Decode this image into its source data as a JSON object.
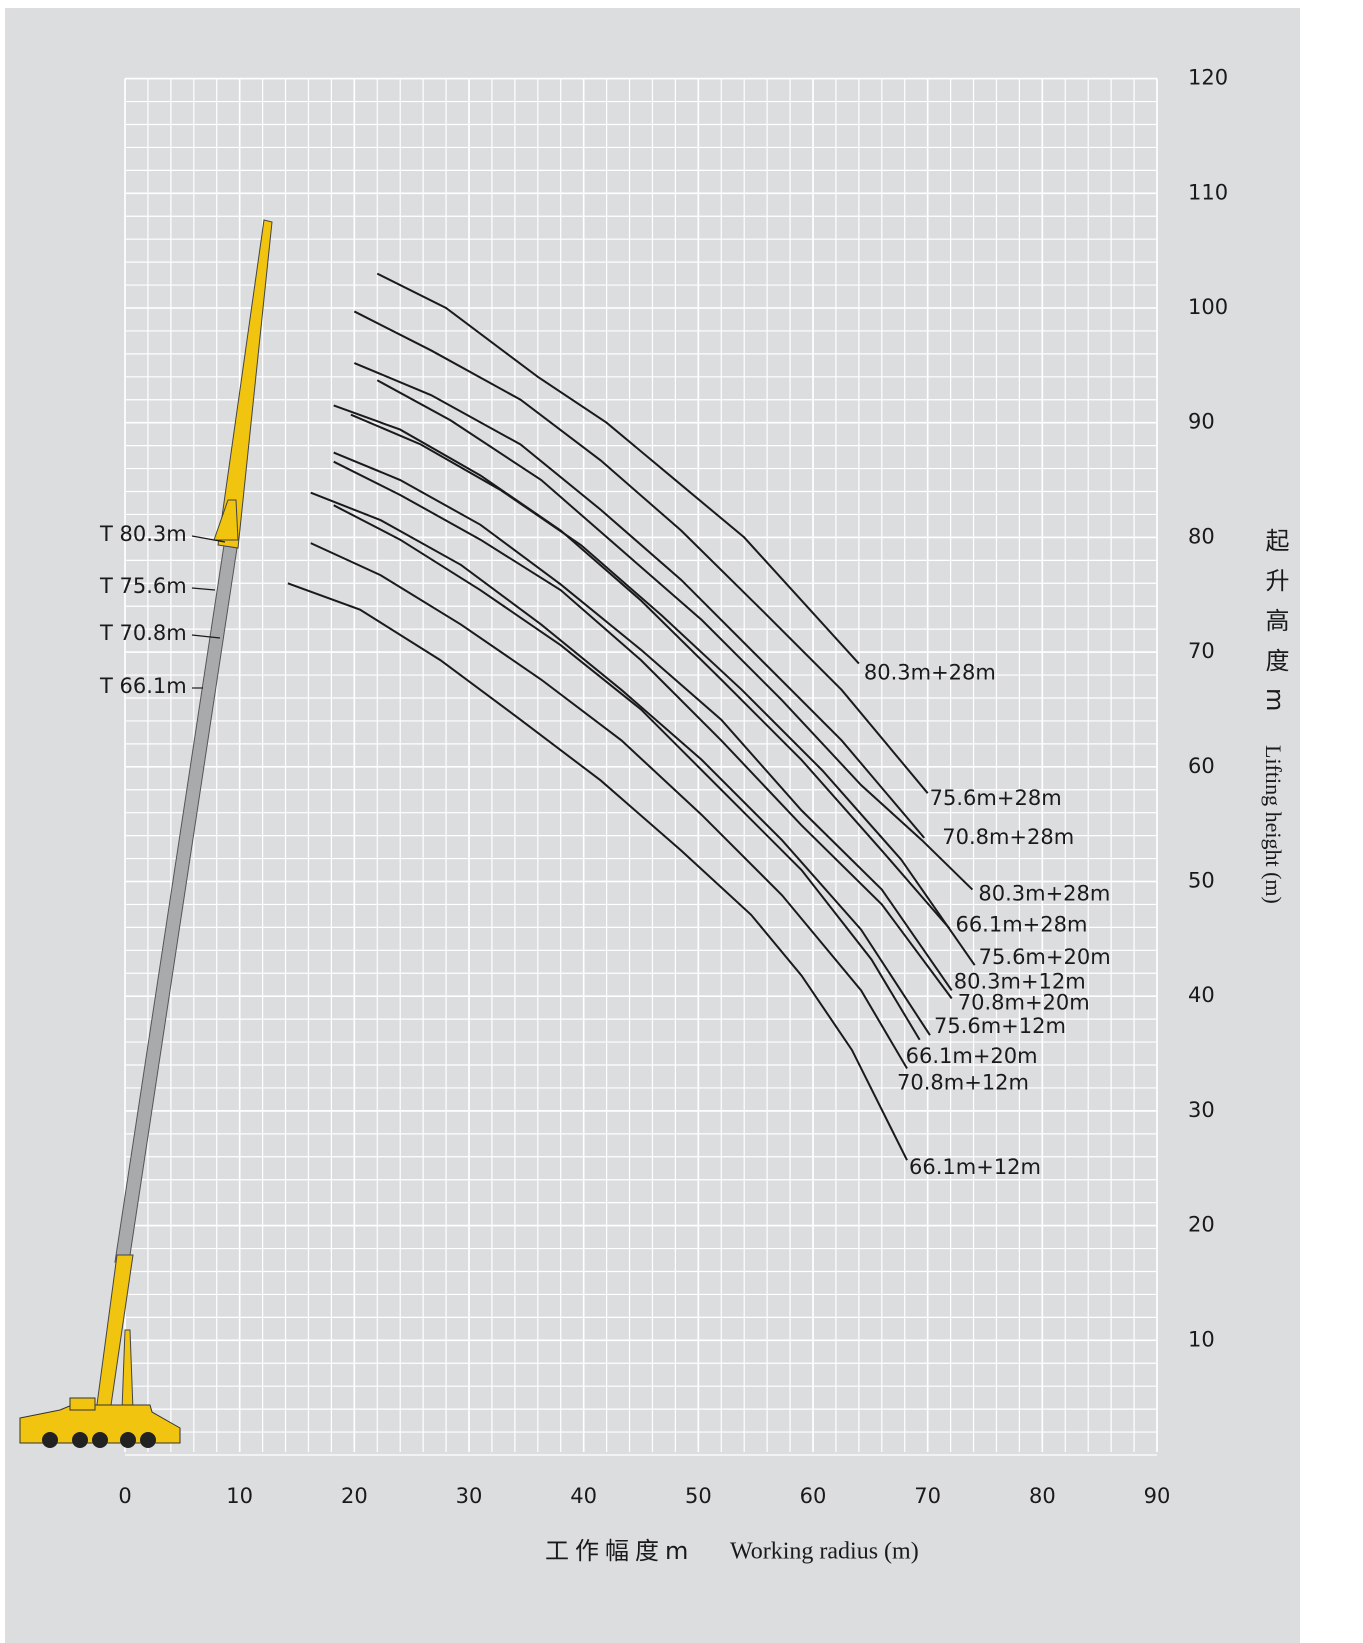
{
  "chart_data": {
    "type": "line",
    "xlim": [
      0,
      90
    ],
    "ylim": [
      0,
      120
    ],
    "xticks": [
      0,
      10,
      20,
      30,
      40,
      50,
      60,
      70,
      80,
      90
    ],
    "yticks": [
      10,
      20,
      30,
      40,
      50,
      60,
      70,
      80,
      90,
      100,
      110,
      120
    ],
    "grid": true,
    "x_label_cn": "工作幅度m",
    "x_label": "Working radius (m)",
    "y_label_cn": "起升高度m",
    "y_label": "Lifting height (m)",
    "annotations": [
      "T 80.3m",
      "T 75.6m",
      "T 70.8m",
      "T 66.1m"
    ],
    "series": [
      {
        "name": "80.3m+28m",
        "color": "#1a1a1a",
        "x": [
          22,
          28,
          36,
          42,
          48,
          54,
          59,
          64
        ],
        "values": [
          103,
          100,
          94,
          90,
          85,
          80,
          74.5,
          69
        ]
      },
      {
        "name": "75.6m+28m",
        "color": "#1a1a1a",
        "x": [
          20,
          26.7,
          34.5,
          41.5,
          48.5,
          55.5,
          62.5,
          70
        ],
        "values": [
          99.7,
          96.3,
          92,
          86.7,
          80.6,
          73.7,
          66.7,
          57.7
        ]
      },
      {
        "name": "70.8m+28m",
        "color": "#1a1a1a",
        "x": [
          20,
          26.7,
          34.5,
          41.5,
          48.5,
          55.5,
          62.5,
          69.7
        ],
        "values": [
          95.2,
          92.4,
          88.1,
          82.4,
          76.3,
          69.3,
          62.3,
          53.8
        ]
      },
      {
        "name": "80.3m+28m",
        "color": "#1a1a1a",
        "x": [
          22,
          28.4,
          36.3,
          43.3,
          50.3,
          57.3,
          64.2,
          69.5,
          73.9
        ],
        "values": [
          93.7,
          90.2,
          85,
          78.9,
          72.8,
          65.8,
          58.4,
          53.6,
          49.3
        ]
      },
      {
        "name": "66.1m+28m",
        "color": "#1a1a1a",
        "x": [
          18.2,
          24,
          31,
          38,
          45,
          52,
          59,
          66,
          71.9
        ],
        "values": [
          91.5,
          89.4,
          85.4,
          80.6,
          74.5,
          67.6,
          60.6,
          52.7,
          45.9
        ]
      },
      {
        "name": "75.6m+20m",
        "color": "#1a1a1a",
        "x": [
          19.7,
          25.8,
          32.8,
          39.8,
          46.8,
          53.8,
          60.8,
          67.7,
          74.1
        ],
        "values": [
          90.7,
          88.1,
          84.1,
          79.3,
          73.2,
          66.7,
          59.7,
          51.9,
          42.7
        ]
      },
      {
        "name": "80.3m+12m",
        "color": "#1a1a1a",
        "x": [
          18.2,
          24,
          31,
          38,
          45,
          52,
          59,
          66,
          72.1
        ],
        "values": [
          87.4,
          85,
          81.1,
          75.9,
          70.2,
          64.1,
          56.2,
          49.3,
          40.5
        ]
      },
      {
        "name": "70.8m+20m",
        "color": "#1a1a1a",
        "x": [
          18.2,
          24,
          31,
          38,
          45,
          52,
          59,
          66,
          72.1
        ],
        "values": [
          86.6,
          83.7,
          79.8,
          75.4,
          69.3,
          62.3,
          54.9,
          48,
          39.8
        ]
      },
      {
        "name": "75.6m+12m",
        "color": "#1a1a1a",
        "x": [
          16.2,
          22.3,
          29.3,
          36.3,
          43.3,
          50.3,
          57.3,
          64.2,
          70.2
        ],
        "values": [
          83.9,
          81.5,
          77.6,
          72.4,
          66.7,
          60.6,
          53.6,
          45.8,
          36.6
        ]
      },
      {
        "name": "66.1m+20m",
        "color": "#1a1a1a",
        "x": [
          18.2,
          24,
          31,
          38,
          45,
          52,
          59,
          65.1,
          69.3
        ],
        "values": [
          82.8,
          79.8,
          75.4,
          70.6,
          65,
          58,
          51,
          43.2,
          36.2
        ]
      },
      {
        "name": "70.8m+12m",
        "color": "#1a1a1a",
        "x": [
          16.2,
          22.3,
          29.3,
          36.3,
          43.3,
          50.3,
          57.3,
          64.2,
          68.2
        ],
        "values": [
          79.5,
          76.7,
          72.4,
          67.6,
          62.3,
          55.8,
          48.8,
          40.5,
          33.7
        ]
      },
      {
        "name": "66.1m+12m",
        "color": "#1a1a1a",
        "x": [
          14.2,
          20.5,
          27.5,
          34.5,
          41.5,
          48.5,
          54.6,
          59,
          63.4,
          68.2
        ],
        "values": [
          76,
          73.7,
          69.3,
          64.1,
          58.8,
          52.7,
          47.1,
          41.8,
          35.3,
          25.7
        ]
      }
    ]
  }
}
